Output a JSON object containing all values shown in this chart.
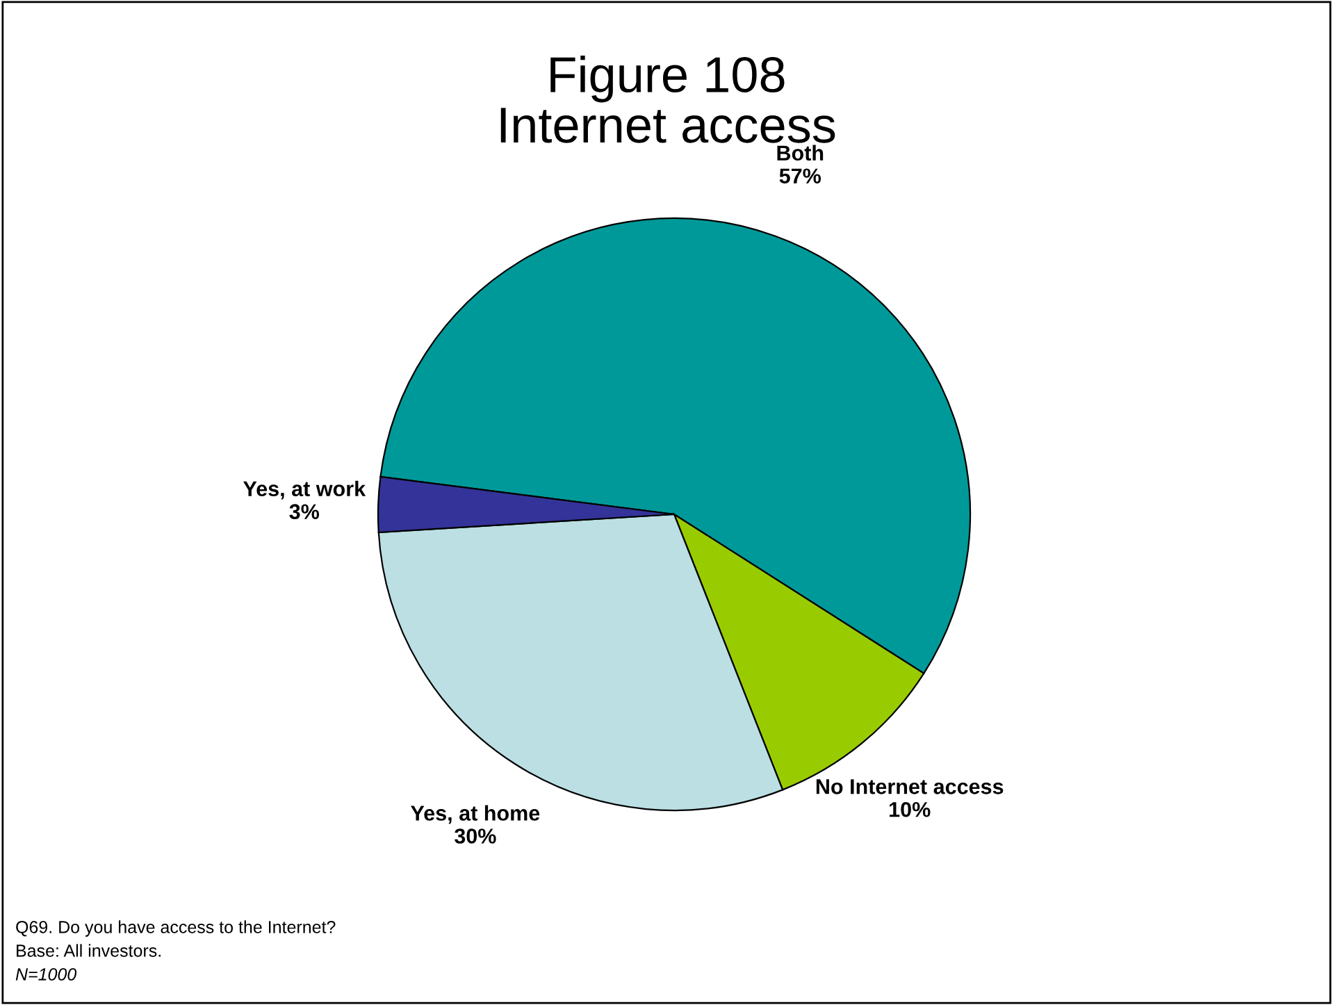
{
  "chart_data": {
    "type": "pie",
    "title": "Figure 108\nInternet access",
    "categories": [
      "Both",
      "No Internet access",
      "Yes, at home",
      "Yes, at work"
    ],
    "values": [
      57,
      10,
      30,
      3
    ],
    "value_labels": [
      "57%",
      "10%",
      "30%",
      "3%"
    ],
    "colors": [
      "#009999",
      "#99cc00",
      "#bbdfe3",
      "#333399"
    ],
    "legend": false,
    "annotations": [
      "Q69. Do you have access to the Internet?",
      "Base: All investors.",
      "N=1000"
    ]
  }
}
